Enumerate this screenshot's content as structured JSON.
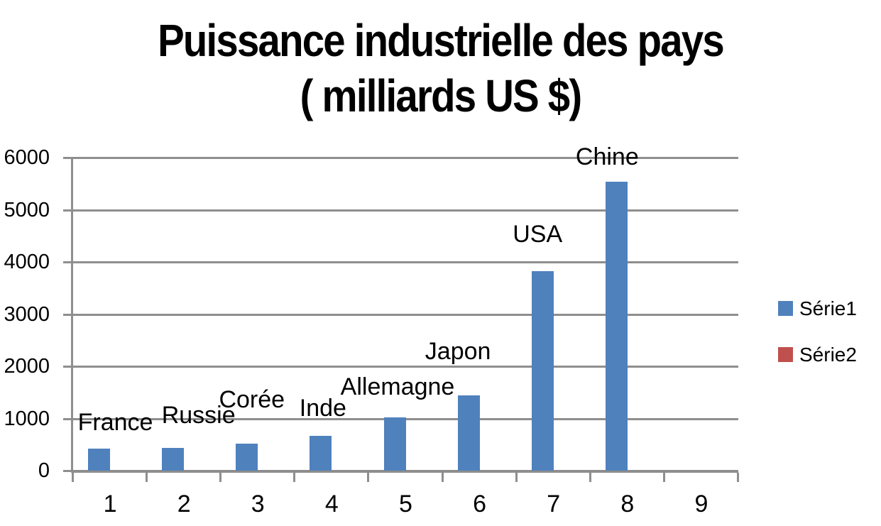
{
  "title": {
    "line1": "Puissance industrielle des pays",
    "line2": "( milliards US $)"
  },
  "legend": {
    "position": "right",
    "items": [
      {
        "label": "Série1",
        "color": "#4f81bd"
      },
      {
        "label": "Série2",
        "color": "#c0504d"
      }
    ]
  },
  "chart_data": {
    "type": "bar",
    "title": "Puissance industrielle des pays ( milliards US $)",
    "categories": [
      "1",
      "2",
      "3",
      "4",
      "5",
      "6",
      "7",
      "8",
      "9"
    ],
    "series": [
      {
        "name": "Série1",
        "color": "#4f81bd",
        "values": [
          420,
          440,
          520,
          660,
          1020,
          1440,
          3820,
          5540,
          null
        ],
        "point_labels": [
          "France",
          "Russie",
          "Corée",
          "Inde",
          "Allemagne",
          "Japon",
          "USA",
          "Chine",
          null
        ]
      },
      {
        "name": "Série2",
        "color": "#c0504d",
        "values": []
      }
    ],
    "xlabel": "",
    "ylabel": "",
    "ylim": [
      0,
      6000
    ],
    "yticks": [
      0,
      1000,
      2000,
      3000,
      4000,
      5000,
      6000
    ],
    "grid": "horizontal",
    "gridline_color": "#8e8e8e",
    "legend_position": "right",
    "background": "#ffffff"
  }
}
